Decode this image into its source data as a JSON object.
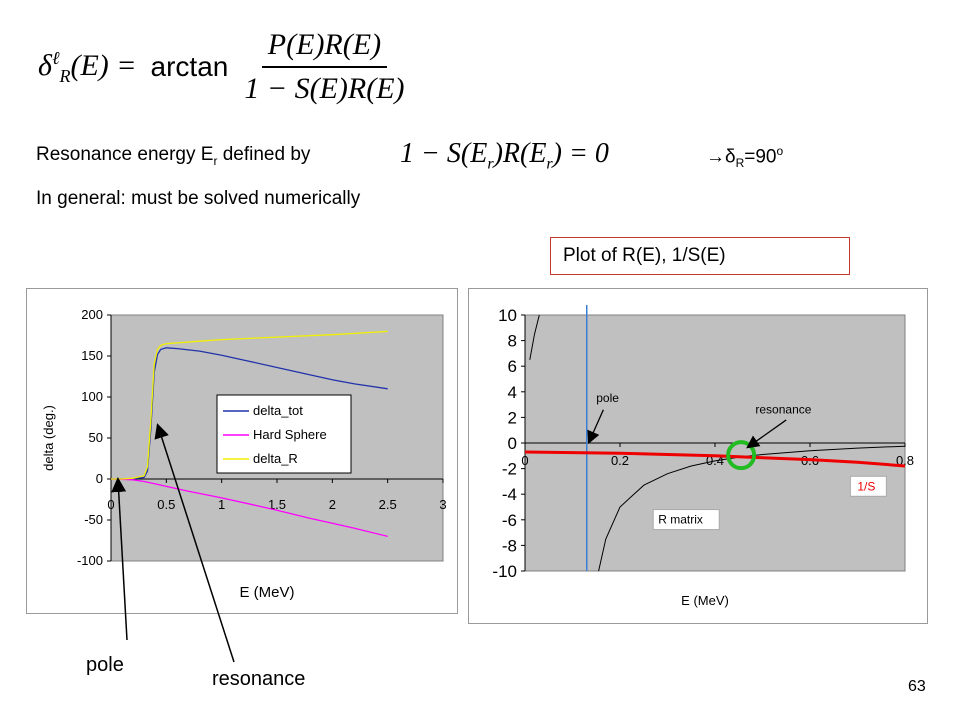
{
  "equation_main": {
    "lhs_symbol": "δ",
    "lhs_sup": "ℓ",
    "lhs_sub": "R",
    "lhs_arg": "(E) =",
    "func": "arctan",
    "numerator": "P(E)R(E)",
    "denominator": "1 − S(E)R(E)"
  },
  "resonance_line": {
    "text": "Resonance energy E",
    "sub": "r",
    "text_after": " defined by",
    "equation": "1 − S(E",
    "equation_sub": "r",
    "equation_mid": ")R(E",
    "equation_sub2": "r",
    "equation_end": ") = 0",
    "result_arrow": "→",
    "result_symbol": "δ",
    "result_sub": "R",
    "result_value": "=90",
    "result_sup": "o"
  },
  "general_line": "In general: must be solved numerically",
  "plot_label": "Plot of R(E), 1/S(E)",
  "annotations": {
    "pole": "pole",
    "resonance": "resonance"
  },
  "page_number": "63",
  "colors": {
    "plot_bg": "#c0c0c0",
    "delta_tot": "#2233aa",
    "hard_sphere": "#ff00ff",
    "delta_R": "#f0f000",
    "one_over_s": "#ee0000",
    "r_matrix": "#000000",
    "pole_line": "#3a7fd5",
    "circle": "#22bb22",
    "label_box_border": "#c0392b"
  },
  "chart_data": [
    {
      "type": "line",
      "title": "",
      "xlabel": "E (MeV)",
      "ylabel": "delta (deg.)",
      "xlim": [
        0,
        3
      ],
      "ylim": [
        -100,
        200
      ],
      "xticks": [
        "0",
        "0.5",
        "1",
        "1.5",
        "2",
        "2.5",
        "3"
      ],
      "xtick_values": [
        0,
        0.5,
        1,
        1.5,
        2,
        2.5,
        3
      ],
      "yticks": [
        "200",
        "150",
        "100",
        "50",
        "0",
        "-50",
        "-100"
      ],
      "ytick_values": [
        200,
        150,
        100,
        50,
        0,
        -50,
        -100
      ],
      "grid": false,
      "legend_position": "center-right",
      "series": [
        {
          "name": "delta_tot",
          "color": "#2233aa",
          "x": [
            0.0,
            0.1,
            0.2,
            0.3,
            0.33,
            0.36,
            0.39,
            0.42,
            0.45,
            0.5,
            0.6,
            0.8,
            1.0,
            1.2,
            1.5,
            1.8,
            2.0,
            2.2,
            2.5
          ],
          "y": [
            0,
            0,
            0,
            2,
            10,
            60,
            130,
            152,
            158,
            160,
            159,
            156,
            151,
            145,
            136,
            127,
            121,
            116,
            110
          ]
        },
        {
          "name": "Hard Sphere",
          "color": "#ff00ff",
          "x": [
            0.0,
            0.2,
            0.3,
            0.4,
            0.5,
            0.7,
            1.0,
            1.3,
            1.5,
            1.8,
            2.0,
            2.2,
            2.5
          ],
          "y": [
            0,
            -1,
            -3,
            -6,
            -9,
            -15,
            -23,
            -32,
            -38,
            -48,
            -54,
            -60,
            -70
          ]
        },
        {
          "name": "delta_R",
          "color": "#f0f000",
          "x": [
            0.0,
            0.1,
            0.2,
            0.3,
            0.33,
            0.36,
            0.39,
            0.42,
            0.45,
            0.5,
            0.6,
            0.8,
            1.0,
            1.5,
            2.0,
            2.5
          ],
          "y": [
            0,
            0,
            1,
            4,
            15,
            70,
            140,
            158,
            163,
            165,
            166,
            168,
            170,
            173,
            176,
            180
          ]
        }
      ]
    },
    {
      "type": "line",
      "title": "",
      "xlabel": "E (MeV)",
      "ylabel": "",
      "xlim": [
        0,
        0.8
      ],
      "ylim": [
        -10,
        10
      ],
      "xticks": [
        "0",
        "0.2",
        "0.4",
        "0.6",
        "0.8"
      ],
      "xtick_values": [
        0,
        0.2,
        0.4,
        0.6,
        0.8
      ],
      "yticks": [
        "10",
        "8",
        "6",
        "4",
        "2",
        "0",
        "-2",
        "-4",
        "-6",
        "-8",
        "-10"
      ],
      "ytick_values": [
        10,
        8,
        6,
        4,
        2,
        0,
        -2,
        -4,
        -6,
        -8,
        -10
      ],
      "grid": false,
      "series": [
        {
          "name": "R matrix",
          "color": "#000000",
          "x": [
            0.01,
            0.02,
            0.03
          ],
          "y": [
            6.5,
            8.5,
            10
          ]
        },
        {
          "name": "R matrix",
          "color": "#000000",
          "x": [
            0.155,
            0.17,
            0.2,
            0.25,
            0.3,
            0.35,
            0.4,
            0.45,
            0.5,
            0.55,
            0.6,
            0.7,
            0.8
          ],
          "y": [
            -10,
            -7.5,
            -5.0,
            -3.3,
            -2.4,
            -1.8,
            -1.4,
            -1.1,
            -0.9,
            -0.75,
            -0.6,
            -0.4,
            -0.25
          ]
        },
        {
          "name": "1/S",
          "color": "#ee0000",
          "x": [
            0.0,
            0.1,
            0.2,
            0.3,
            0.4,
            0.5,
            0.6,
            0.7,
            0.8
          ],
          "y": [
            -0.7,
            -0.75,
            -0.8,
            -0.9,
            -1.0,
            -1.15,
            -1.3,
            -1.5,
            -1.8
          ]
        }
      ],
      "pole_x": 0.13,
      "resonance_x": 0.455,
      "labels": {
        "pole": "pole",
        "resonance": "resonance",
        "r_matrix": "R matrix",
        "one_over_s": "1/S"
      }
    }
  ]
}
